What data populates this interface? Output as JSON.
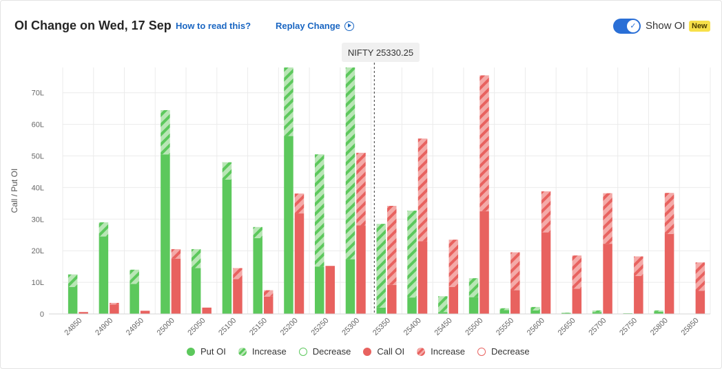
{
  "header": {
    "title": "OI Change on Wed, 17 Sep",
    "how_to_read": "How to read this?",
    "replay_change": "Replay Change",
    "show_oi_label": "Show OI",
    "new_badge": "New",
    "show_oi_enabled": true
  },
  "tooltip": {
    "text": "NIFTY 25330.25"
  },
  "colors": {
    "put": "#5cc85c",
    "put_light": "#b9e6b6",
    "call": "#e8625f",
    "call_light": "#f4aaa8",
    "grid": "#ebebeb",
    "accent": "#2a6fd6"
  },
  "legend": [
    {
      "label": "Put OI",
      "style": "put-solid"
    },
    {
      "label": "Increase",
      "style": "put-increase"
    },
    {
      "label": "Decrease",
      "style": "put-decrease"
    },
    {
      "label": "Call OI",
      "style": "call-solid"
    },
    {
      "label": "Increase",
      "style": "call-increase"
    },
    {
      "label": "Decrease",
      "style": "call-decrease"
    }
  ],
  "chart_data": {
    "type": "bar",
    "title": "OI Change on Wed, 17 Sep",
    "xlabel": "",
    "ylabel": "Call / Put OI",
    "ylim": [
      0,
      78
    ],
    "yticks": [
      {
        "v": 0,
        "label": "0"
      },
      {
        "v": 10,
        "label": "10L"
      },
      {
        "v": 20,
        "label": "20L"
      },
      {
        "v": 30,
        "label": "30L"
      },
      {
        "v": 40,
        "label": "40L"
      },
      {
        "v": 50,
        "label": "50L"
      },
      {
        "v": 60,
        "label": "60L"
      },
      {
        "v": 70,
        "label": "70L"
      }
    ],
    "spot_marker": 25330.25,
    "categories": [
      "24850",
      "24900",
      "24950",
      "25000",
      "25050",
      "25100",
      "25150",
      "25200",
      "25250",
      "25300",
      "25350",
      "25400",
      "25450",
      "25500",
      "25550",
      "25600",
      "25650",
      "25700",
      "25750",
      "25800",
      "25850"
    ],
    "series": [
      {
        "name": "Put OI",
        "values": [
          8.5,
          24.5,
          9.5,
          50.5,
          14.5,
          42.5,
          24.0,
          56.3,
          15.0,
          17.3,
          2.0,
          5.2,
          0.6,
          5.3,
          1.2,
          1.1,
          0.3,
          0.6,
          0.2,
          0.7,
          0.0
        ],
        "change": [
          4.0,
          4.5,
          4.5,
          14.0,
          6.0,
          5.5,
          3.5,
          22.0,
          35.5,
          62.0,
          26.5,
          27.5,
          5.0,
          6.0,
          0.6,
          1.1,
          0.1,
          0.5,
          0.0,
          0.4,
          0.0
        ]
      },
      {
        "name": "Call OI",
        "values": [
          0.6,
          3.0,
          1.0,
          17.5,
          2.0,
          11.0,
          5.5,
          31.8,
          15.2,
          28.0,
          9.2,
          23.0,
          8.5,
          32.5,
          7.5,
          25.8,
          8.0,
          22.2,
          12.0,
          25.3,
          7.3
        ],
        "change": [
          0.0,
          0.5,
          0.0,
          3.0,
          0.0,
          3.5,
          2.0,
          6.3,
          0.0,
          23.0,
          25.0,
          32.5,
          15.0,
          43.0,
          12.0,
          13.0,
          10.5,
          16.0,
          6.2,
          13.0,
          9.0
        ]
      }
    ]
  }
}
